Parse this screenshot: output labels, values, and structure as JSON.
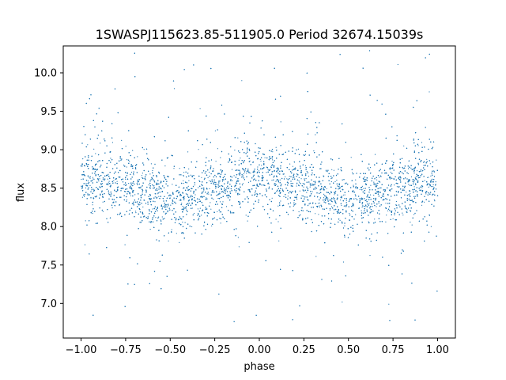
{
  "chart_data": {
    "type": "scatter",
    "title": "1SWASPJ115623.85-511905.0 Period 32674.15039s",
    "xlabel": "phase",
    "ylabel": "flux",
    "xlim": [
      -1.1,
      1.1
    ],
    "ylim": [
      6.55,
      10.35
    ],
    "x_ticks": [
      -1.0,
      -0.75,
      -0.5,
      -0.25,
      0.0,
      0.25,
      0.5,
      0.75,
      1.0
    ],
    "x_tick_labels": [
      "−1.00",
      "−0.75",
      "−0.50",
      "−0.25",
      "0.00",
      "0.25",
      "0.50",
      "0.75",
      "1.00"
    ],
    "y_ticks": [
      7.0,
      7.5,
      8.0,
      8.5,
      9.0,
      9.5,
      10.0
    ],
    "y_tick_labels": [
      "7.0",
      "7.5",
      "8.0",
      "8.5",
      "9.0",
      "9.5",
      "10.0"
    ],
    "grid": false,
    "legend": "none",
    "marker_color": "#1f77b4",
    "series": [
      {
        "profile_phase": [
          -1.0,
          -0.75,
          -0.5,
          -0.25,
          0.0,
          0.25,
          0.5,
          0.75,
          1.0
        ],
        "profile_flux": [
          8.62,
          8.55,
          8.32,
          8.48,
          8.65,
          8.55,
          8.3,
          8.48,
          8.62
        ],
        "scatter_sigma": 0.22,
        "outlier_range": [
          6.7,
          10.3
        ]
      }
    ]
  }
}
